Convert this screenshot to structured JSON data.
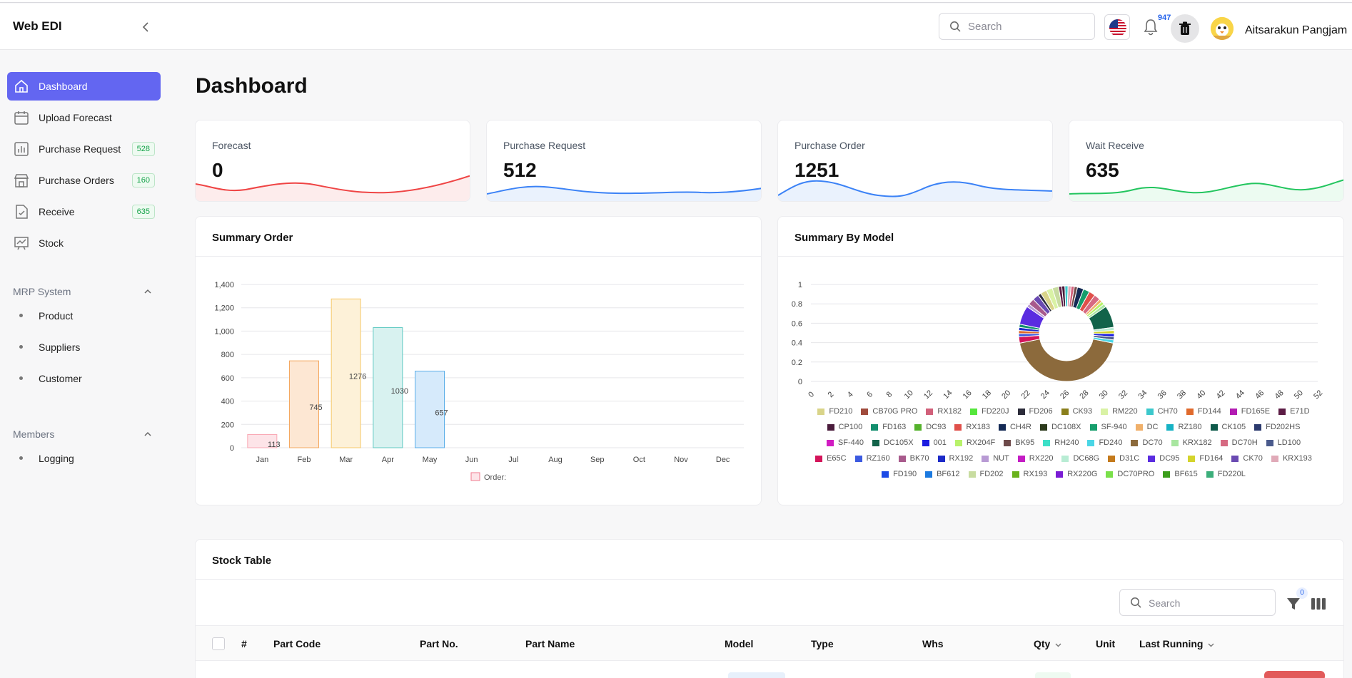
{
  "app": {
    "brand": "Web EDI"
  },
  "header": {
    "search_placeholder": "Search",
    "notification_count": "947",
    "user_name": "Aitsarakun Pangjam"
  },
  "sidebar": {
    "items": [
      {
        "label": "Dashboard",
        "icon": "home-icon",
        "active": true
      },
      {
        "label": "Upload Forecast",
        "icon": "calendar-icon"
      },
      {
        "label": "Purchase Request",
        "icon": "bar-chart-icon",
        "badge": "528"
      },
      {
        "label": "Purchase Orders",
        "icon": "store-icon",
        "badge": "160"
      },
      {
        "label": "Receive",
        "icon": "file-check-icon",
        "badge": "635"
      },
      {
        "label": "Stock",
        "icon": "presentation-chart-icon"
      }
    ],
    "sections": [
      {
        "title": "MRP System",
        "items": [
          "Product",
          "Suppliers",
          "Customer"
        ]
      },
      {
        "title": "Members",
        "items": [
          "Logging"
        ]
      }
    ]
  },
  "page": {
    "title": "Dashboard"
  },
  "stats": [
    {
      "label": "Forecast",
      "value": "0",
      "color": "#ef4444"
    },
    {
      "label": "Purchase Request",
      "value": "512",
      "color": "#3b82f6"
    },
    {
      "label": "Purchase Order",
      "value": "1251",
      "color": "#3b82f6"
    },
    {
      "label": "Wait Receive",
      "value": "635",
      "color": "#22c55e"
    }
  ],
  "summary_order": {
    "title": "Summary Order"
  },
  "summary_model": {
    "title": "Summary By Model"
  },
  "chart_data": [
    {
      "type": "bar",
      "title": "Summary Order",
      "categories": [
        "Jan",
        "Feb",
        "Mar",
        "Apr",
        "May",
        "Jun",
        "Jul",
        "Aug",
        "Sep",
        "Oct",
        "Nov",
        "Dec"
      ],
      "series": [
        {
          "name": "Order:",
          "values": [
            113,
            745,
            1276,
            1030,
            657,
            0,
            0,
            0,
            0,
            0,
            0,
            0
          ]
        }
      ],
      "bar_colors": [
        "#f9a8b4",
        "#f4a860",
        "#f7c96a",
        "#5fc9c2",
        "#5aaee8"
      ],
      "bar_fills": [
        "#fde4e8",
        "#fde7d3",
        "#fdf1d8",
        "#d8f2f0",
        "#d6eafb"
      ],
      "ylim": [
        0,
        1400
      ],
      "yticks": [
        0,
        200,
        400,
        600,
        800,
        1000,
        1200,
        1400
      ],
      "ytick_labels": [
        "0",
        "200",
        "400",
        "600",
        "800",
        "1,000",
        "1,200",
        "1,400"
      ],
      "legend": "bottom"
    },
    {
      "type": "pie",
      "title": "Summary By Model",
      "y_ticks": [
        "0",
        "0.2",
        "0.4",
        "0.6",
        "0.8",
        "1"
      ],
      "x_ticks": [
        "0",
        "2",
        "4",
        "6",
        "8",
        "10",
        "12",
        "14",
        "16",
        "18",
        "20",
        "22",
        "24",
        "26",
        "28",
        "30",
        "32",
        "34",
        "36",
        "38",
        "40",
        "42",
        "44",
        "46",
        "48",
        "50",
        "52"
      ],
      "legend_rows": [
        [
          [
            "FD210",
            "#d9d489"
          ],
          [
            "CB70G PRO",
            "#a04b3c"
          ],
          [
            "RX182",
            "#d1607a"
          ],
          [
            "FD220J",
            "#55e63c"
          ],
          [
            "FD206",
            "#2c2c3a"
          ],
          [
            "CK93",
            "#8a7f1c"
          ],
          [
            "RM220",
            "#d9f2a5"
          ],
          [
            "CH70",
            "#3cc8cc"
          ],
          [
            "FD144",
            "#e06a2c"
          ],
          [
            "FD165E",
            "#b21cb2"
          ],
          [
            "E71D",
            "#5c1c45"
          ]
        ],
        [
          [
            "CP100",
            "#4a1c3c"
          ],
          [
            "FD163",
            "#138f6e"
          ],
          [
            "DC93",
            "#55b22c"
          ],
          [
            "RX183",
            "#e0504a"
          ],
          [
            "CH4R",
            "#142a55"
          ],
          [
            "DC108X",
            "#2c3a1c"
          ],
          [
            "SF-940",
            "#169e6c"
          ],
          [
            "DC",
            "#f0b06a"
          ],
          [
            "RZ180",
            "#16b2c4"
          ],
          [
            "CK105",
            "#0e5a4a"
          ],
          [
            "FD202HS",
            "#2c3a6e"
          ]
        ],
        [
          [
            "SF-440",
            "#d11cc2"
          ],
          [
            "DC105X",
            "#12634a"
          ],
          [
            "001",
            "#1c1ce0"
          ],
          [
            "RX204F",
            "#b8f26a"
          ],
          [
            "BK95",
            "#6e4a4a"
          ],
          [
            "RH240",
            "#3ce0c8"
          ],
          [
            "FD240",
            "#4ad6e6"
          ],
          [
            "DC70",
            "#8c6a3c"
          ],
          [
            "KRX182",
            "#a8e6a0"
          ],
          [
            "DC70H",
            "#d66a82"
          ],
          [
            "LD100",
            "#4a5a8c"
          ]
        ],
        [
          [
            "E65C",
            "#d4145a"
          ],
          [
            "RZ160",
            "#3c5ae0"
          ],
          [
            "BK70",
            "#a85a8c"
          ],
          [
            "RX192",
            "#1c2ac8"
          ],
          [
            "NUT",
            "#b89ad4"
          ],
          [
            "RX220",
            "#c41cc4"
          ],
          [
            "DC68G",
            "#b8ecd4"
          ],
          [
            "D31C",
            "#c47a1c"
          ],
          [
            "DC95",
            "#5a2ce0"
          ],
          [
            "FD164",
            "#d4d42c"
          ],
          [
            "CK70",
            "#6a4ab2"
          ],
          [
            "KRX193",
            "#e0aab8"
          ]
        ],
        [
          [
            "FD190",
            "#1c4ae6"
          ],
          [
            "BF612",
            "#1c7ae0"
          ],
          [
            "FD202",
            "#c8dca0"
          ],
          [
            "RX193",
            "#6ab21c"
          ],
          [
            "RX220G",
            "#7a1cd4"
          ],
          [
            "DC70PRO",
            "#7ae04a"
          ],
          [
            "BF615",
            "#3c9e1c"
          ],
          [
            "FD220L",
            "#3cae7a"
          ]
        ]
      ],
      "slices": [
        {
          "label": "DC70",
          "value": 41,
          "color": "#8c6a3c"
        },
        {
          "label": "E65C",
          "value": 2,
          "color": "#d4145a"
        },
        {
          "label": "RZ160",
          "value": 1,
          "color": "#3c5ae0"
        },
        {
          "label": "FD144",
          "value": 1,
          "color": "#e06a2c"
        },
        {
          "label": "RX192",
          "value": 1,
          "color": "#1c2ac8"
        },
        {
          "label": "FD163",
          "value": 1,
          "color": "#138f6e"
        },
        {
          "label": "DC95",
          "value": 6,
          "color": "#5a2ce0"
        },
        {
          "label": "NUT",
          "value": 1,
          "color": "#b89ad4"
        },
        {
          "label": "BK70",
          "value": 2,
          "color": "#a85a8c"
        },
        {
          "label": "CK70",
          "value": 2,
          "color": "#6a4ab2"
        },
        {
          "label": "FD206",
          "value": 1,
          "color": "#2c2c3a"
        },
        {
          "label": "FD210",
          "value": 2,
          "color": "#d9d489"
        },
        {
          "label": "RM220",
          "value": 2,
          "color": "#d9f2a5"
        },
        {
          "label": "FD202",
          "value": 2,
          "color": "#c8dca0"
        },
        {
          "label": "E71D",
          "value": 1,
          "color": "#5c1c45"
        },
        {
          "label": "CP100",
          "value": 1,
          "color": "#4a1c3c"
        },
        {
          "label": "CH70",
          "value": 1,
          "color": "#3cc8cc"
        },
        {
          "label": "KRX193",
          "value": 1,
          "color": "#e0aab8"
        },
        {
          "label": "RX182",
          "value": 1,
          "color": "#d1607a"
        },
        {
          "label": "BK95",
          "value": 1,
          "color": "#6e4a4a"
        },
        {
          "label": "CH4R",
          "value": 2,
          "color": "#142a55"
        },
        {
          "label": "SF-940",
          "value": 2,
          "color": "#169e6c"
        },
        {
          "label": "RX183",
          "value": 2,
          "color": "#e0504a"
        },
        {
          "label": "DC70H",
          "value": 2,
          "color": "#d66a82"
        },
        {
          "label": "DC",
          "value": 1,
          "color": "#f0b06a"
        },
        {
          "label": "RX204F",
          "value": 1,
          "color": "#b8f26a"
        },
        {
          "label": "KRX182",
          "value": 1,
          "color": "#a8e6a0"
        },
        {
          "label": "DC105X",
          "value": 7,
          "color": "#12634a"
        },
        {
          "label": "DC68G",
          "value": 1,
          "color": "#b8ecd4"
        },
        {
          "label": "FD164",
          "value": 1,
          "color": "#d4d42c"
        },
        {
          "label": "001",
          "value": 1,
          "color": "#1c1ce0"
        },
        {
          "label": "LD100",
          "value": 1,
          "color": "#4a5a8c"
        },
        {
          "label": "FD240",
          "value": 1,
          "color": "#4ad6e6"
        }
      ],
      "legend": "bottom"
    }
  ],
  "stock_table": {
    "title": "Stock Table",
    "search_placeholder": "Search",
    "filter_count": "0",
    "columns": [
      "#",
      "Part Code",
      "Part No.",
      "Part Name",
      "Model",
      "Type",
      "Whs",
      "Qty",
      "Unit",
      "Last Running"
    ]
  }
}
